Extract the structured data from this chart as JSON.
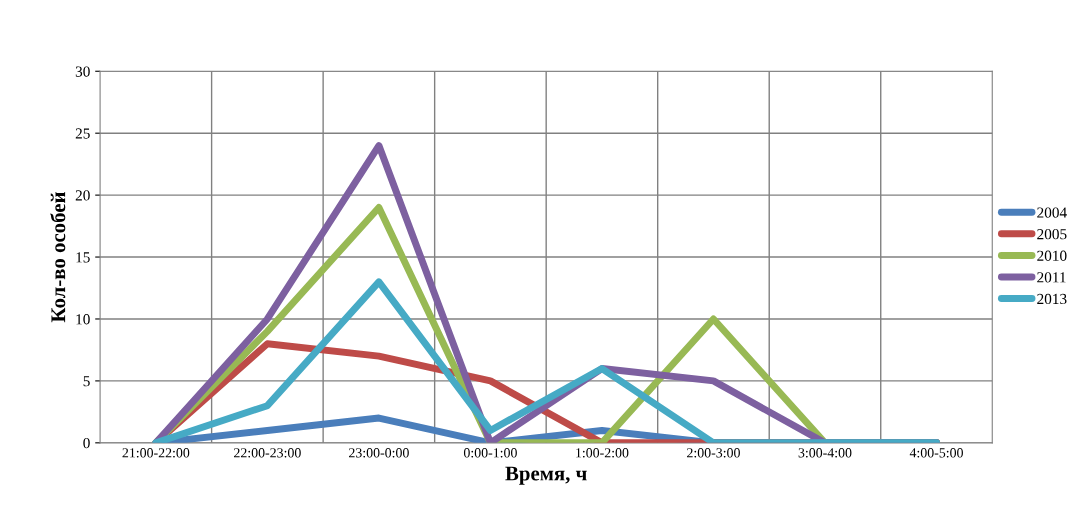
{
  "chart_data": {
    "type": "line",
    "xlabel": "Время, ч",
    "ylabel": "Кол-во особей",
    "categories": [
      "21:00-22:00",
      "22:00-23:00",
      "23:00-0:00",
      "0:00-1:00",
      "1:00-2:00",
      "2:00-3:00",
      "3:00-4:00",
      "4:00-5:00"
    ],
    "series": [
      {
        "name": "2004",
        "color": "#4a7ebb",
        "values": [
          0,
          1,
          2,
          0,
          1,
          0,
          0,
          0
        ]
      },
      {
        "name": "2005",
        "color": "#be4b48",
        "values": [
          0,
          8,
          7,
          5,
          0,
          0,
          0,
          0
        ]
      },
      {
        "name": "2010",
        "color": "#98b954",
        "values": [
          0,
          9,
          19,
          0,
          0,
          10,
          0,
          0
        ]
      },
      {
        "name": "2011",
        "color": "#7d60a0",
        "values": [
          0,
          10,
          24,
          0,
          6,
          5,
          0,
          0
        ]
      },
      {
        "name": "2013",
        "color": "#46aac5",
        "values": [
          0,
          3,
          13,
          1,
          6,
          0,
          0,
          0
        ]
      }
    ],
    "ylim": [
      0,
      30
    ],
    "yticks": [
      0,
      5,
      10,
      15,
      20,
      25,
      30
    ],
    "grid": true,
    "legend": "right",
    "marker": "none",
    "line_style": "solid"
  }
}
